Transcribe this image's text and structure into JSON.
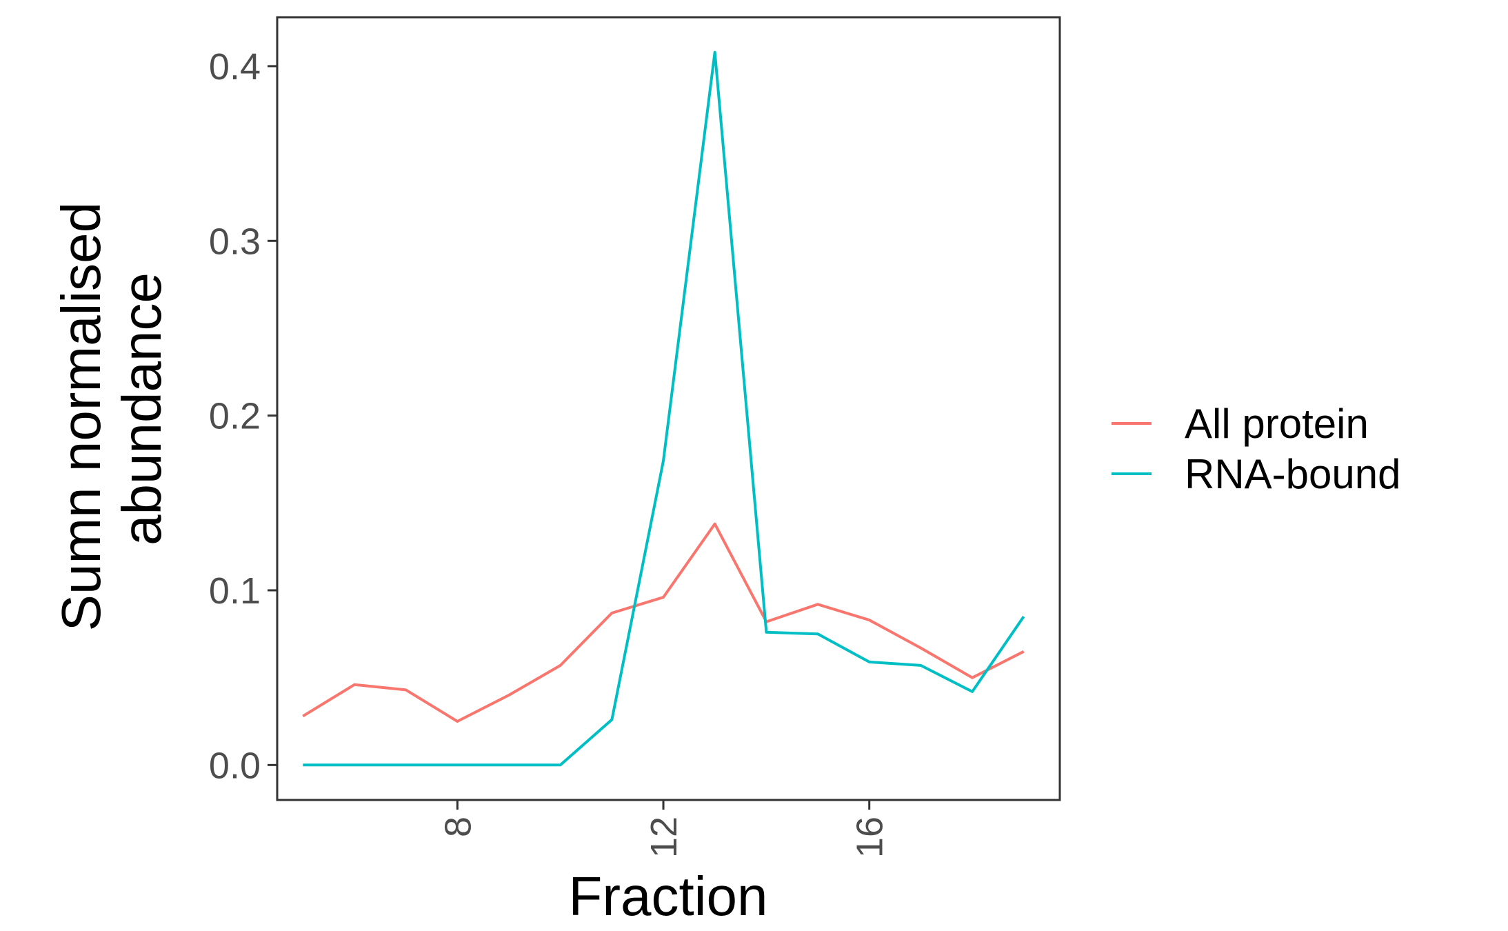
{
  "chart_data": {
    "type": "line",
    "xlabel": "Fraction",
    "ylabel_lines": [
      "Sumn normalised",
      "abundance"
    ],
    "x": [
      5,
      6,
      7,
      8,
      9,
      10,
      11,
      12,
      13,
      14,
      15,
      16,
      17,
      18,
      19
    ],
    "xlim": [
      4.5,
      19.7
    ],
    "ylim": [
      -0.02,
      0.428
    ],
    "x_ticks": [
      8,
      12,
      16
    ],
    "x_tick_labels": [
      "8",
      "12",
      "16"
    ],
    "y_ticks": [
      0.0,
      0.1,
      0.2,
      0.3,
      0.4
    ],
    "y_tick_labels": [
      "0.0",
      "0.1",
      "0.2",
      "0.3",
      "0.4"
    ],
    "grid": false,
    "legend_position": "right",
    "series": [
      {
        "name": "All protein",
        "color": "#F8766D",
        "values": [
          0.028,
          0.046,
          0.043,
          0.025,
          0.04,
          0.057,
          0.087,
          0.096,
          0.138,
          0.082,
          0.092,
          0.083,
          0.067,
          0.05,
          0.065
        ]
      },
      {
        "name": "RNA-bound",
        "color": "#00BFC4",
        "values": [
          0.0,
          0.0,
          0.0,
          0.0,
          0.0,
          0.0,
          0.026,
          0.174,
          0.408,
          0.076,
          0.075,
          0.059,
          0.057,
          0.042,
          0.085
        ]
      }
    ]
  }
}
